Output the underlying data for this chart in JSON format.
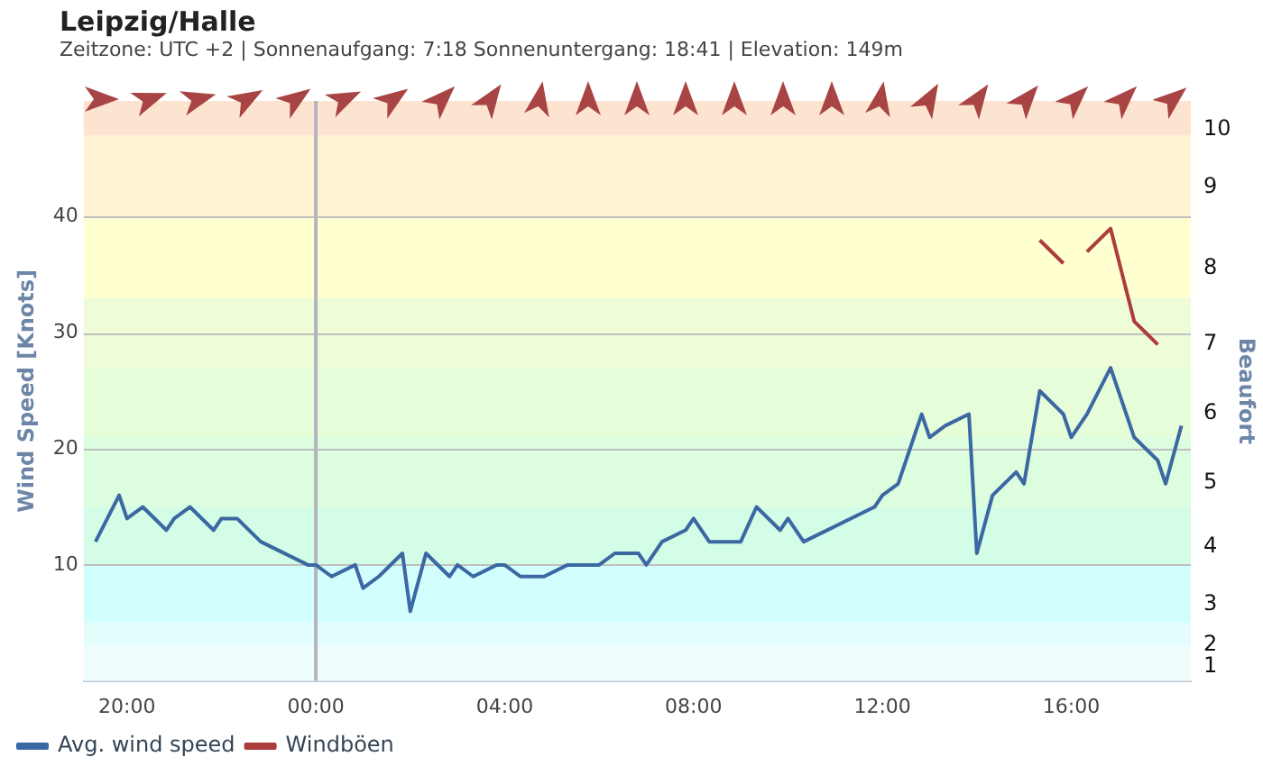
{
  "chart_data": {
    "type": "line",
    "title": "Leipzig/Halle",
    "subtitle": "Zeitzone: UTC +2 | Sonnenaufgang: 7:18 Sonnenuntergang: 18:41 | Elevation: 149m",
    "ylabel": "Wind Speed [Knots]",
    "y2label": "Beaufort",
    "xlim": [
      "--10-02T19:05",
      "--10-03T18:32"
    ],
    "xticks": [
      {
        "value": "--10-02T20:00",
        "label": "20:00"
      },
      {
        "value": "--10-03T00:00",
        "label": "00:00"
      },
      {
        "value": "--10-03T04:00",
        "label": "04:00"
      },
      {
        "value": "--10-03T08:00",
        "label": "08:00"
      },
      {
        "value": "--10-03T12:00",
        "label": "12:00"
      },
      {
        "value": "--10-03T16:00",
        "label": "16:00"
      }
    ],
    "ylim": [
      0,
      50
    ],
    "yticks": [
      10,
      20,
      30,
      40
    ],
    "series": [
      {
        "name": "Avg. wind speed",
        "color": "#3b68a3",
        "x": [
          "--10-02T19:20",
          "--10-02T19:50",
          "--10-02T20:00",
          "--10-02T20:20",
          "--10-02T20:50",
          "--10-02T21:00",
          "--10-02T21:20",
          "--10-02T21:50",
          "--10-02T22:00",
          "--10-02T22:20",
          "--10-02T22:50",
          "--10-02T23:50",
          "--10-03T00:00",
          "--10-03T00:20",
          "--10-03T00:50",
          "--10-03T01:00",
          "--10-03T01:20",
          "--10-03T01:50",
          "--10-03T02:00",
          "--10-03T02:20",
          "--10-03T02:50",
          "--10-03T03:00",
          "--10-03T03:20",
          "--10-03T03:50",
          "--10-03T04:00",
          "--10-03T04:20",
          "--10-03T04:50",
          "--10-03T05:20",
          "--10-03T06:00",
          "--10-03T06:20",
          "--10-03T06:50",
          "--10-03T07:00",
          "--10-03T07:20",
          "--10-03T07:50",
          "--10-03T08:00",
          "--10-03T08:20",
          "--10-03T09:00",
          "--10-03T09:20",
          "--10-03T09:50",
          "--10-03T10:00",
          "--10-03T10:20",
          "--10-03T11:50",
          "--10-03T12:00",
          "--10-03T12:20",
          "--10-03T12:50",
          "--10-03T13:00",
          "--10-03T13:20",
          "--10-03T13:50",
          "--10-03T14:00",
          "--10-03T14:20",
          "--10-03T14:50",
          "--10-03T15:00",
          "--10-03T15:20",
          "--10-03T15:50",
          "--10-03T16:00",
          "--10-03T16:20",
          "--10-03T16:50",
          "--10-03T17:20",
          "--10-03T17:50",
          "--10-03T18:00",
          "--10-03T18:20"
        ],
        "values": [
          12,
          16,
          14,
          15,
          13,
          14,
          15,
          13,
          14,
          14,
          12,
          10,
          10,
          9,
          10,
          8,
          9,
          11,
          6,
          11,
          9,
          10,
          9,
          10,
          10,
          9,
          9,
          10,
          10,
          11,
          11,
          10,
          12,
          13,
          14,
          12,
          12,
          15,
          13,
          14,
          12,
          15,
          16,
          17,
          23,
          21,
          22,
          23,
          11,
          16,
          18,
          17,
          25,
          23,
          21,
          23,
          27,
          21,
          19,
          17,
          22
        ]
      },
      {
        "name": "Windböen",
        "color": "#ad3c3c",
        "x": [
          "--10-03T15:20",
          "--10-03T15:50",
          "--10-03T16:00",
          "--10-03T16:20",
          "--10-03T16:50",
          "--10-03T17:20",
          "--10-03T17:50"
        ],
        "values": [
          38,
          36,
          null,
          37,
          39,
          31,
          29
        ]
      }
    ],
    "bands": [
      {
        "axis": "y",
        "from": 0,
        "to": 3,
        "color": "#effdfd",
        "label": "1"
      },
      {
        "axis": "y",
        "from": 3,
        "to": 5,
        "color": "#e3fdfd",
        "label": "2"
      },
      {
        "axis": "y",
        "from": 5,
        "to": 10,
        "color": "#d2fffd",
        "label": "3"
      },
      {
        "axis": "y",
        "from": 10,
        "to": 15,
        "color": "#d3fde6",
        "label": "4"
      },
      {
        "axis": "y",
        "from": 15,
        "to": 21,
        "color": "#dcfdde",
        "label": "5"
      },
      {
        "axis": "y",
        "from": 21,
        "to": 27,
        "color": "#e6fdda",
        "label": "6"
      },
      {
        "axis": "y",
        "from": 27,
        "to": 33,
        "color": "#effcd8",
        "label": "7"
      },
      {
        "axis": "y",
        "from": 33,
        "to": 40,
        "color": "#ffffd0",
        "label": "8"
      },
      {
        "axis": "y",
        "from": 40,
        "to": 47,
        "color": "#fdf3d0",
        "label": "9"
      },
      {
        "axis": "y",
        "from": 47,
        "to": 50,
        "color": "#fde4d0",
        "label": "10"
      }
    ],
    "ref_lines": [
      {
        "axis": "x",
        "value": "--10-03T00:00",
        "color": "#b4b4bc"
      }
    ],
    "grid": "y",
    "legend": "bottom",
    "marker": "none",
    "line_style": "solid"
  }
}
